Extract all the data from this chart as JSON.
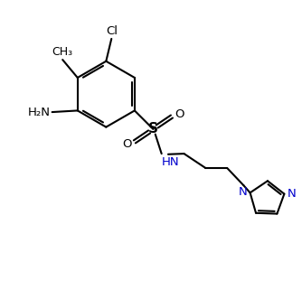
{
  "background_color": "#ffffff",
  "bond_color": "#000000",
  "nitrogen_color": "#0000cd",
  "text_color": "#000000",
  "line_width": 1.5,
  "figsize": [
    3.34,
    3.21
  ],
  "dpi": 100,
  "xlim": [
    0,
    10
  ],
  "ylim": [
    0,
    9.6
  ]
}
